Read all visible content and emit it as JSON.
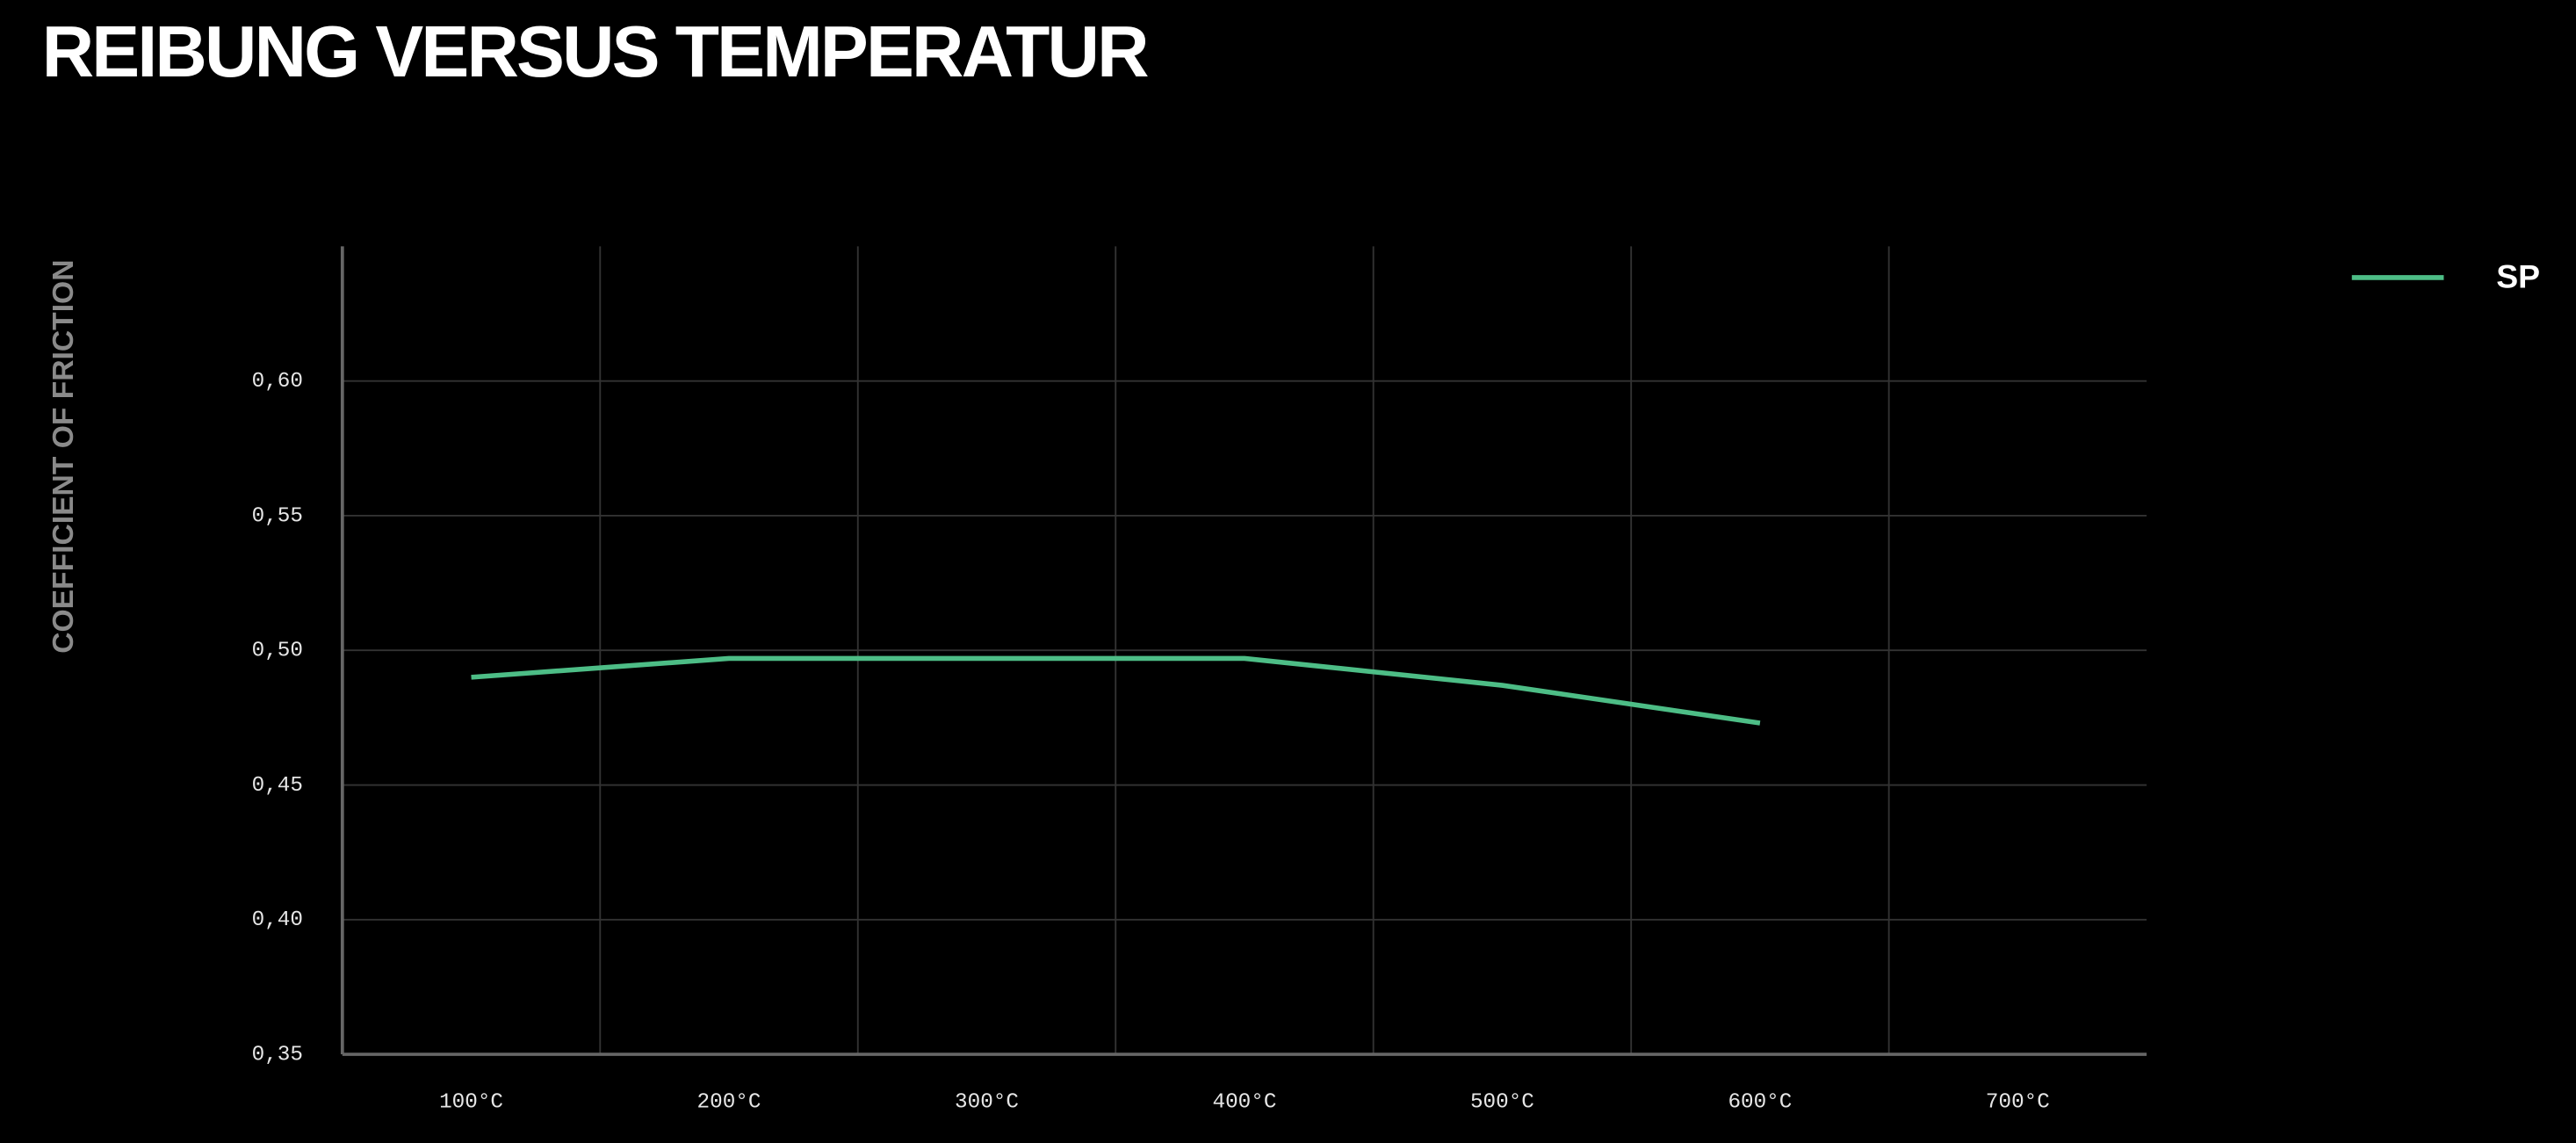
{
  "chart_data": {
    "type": "line",
    "title": "REIBUNG VERSUS TEMPERATUR",
    "y_label": "COEFFICIENT OF FRICTION",
    "categories": [
      "100°C",
      "200°C",
      "300°C",
      "400°C",
      "500°C",
      "600°C",
      "700°C"
    ],
    "series": [
      {
        "name": "SP",
        "color": "#4dbd86",
        "values": [
          0.49,
          0.497,
          0.497,
          0.497,
          0.487,
          0.473,
          null
        ]
      }
    ],
    "ylim": [
      0.35,
      0.65
    ],
    "yticks": [
      {
        "value": 0.35,
        "label": "0,35"
      },
      {
        "value": 0.4,
        "label": "0,40"
      },
      {
        "value": 0.45,
        "label": "0,45"
      },
      {
        "value": 0.5,
        "label": "0,50"
      },
      {
        "value": 0.55,
        "label": "0,55"
      },
      {
        "value": 0.6,
        "label": "0,60"
      }
    ],
    "grid": true,
    "legend": "top-right"
  }
}
